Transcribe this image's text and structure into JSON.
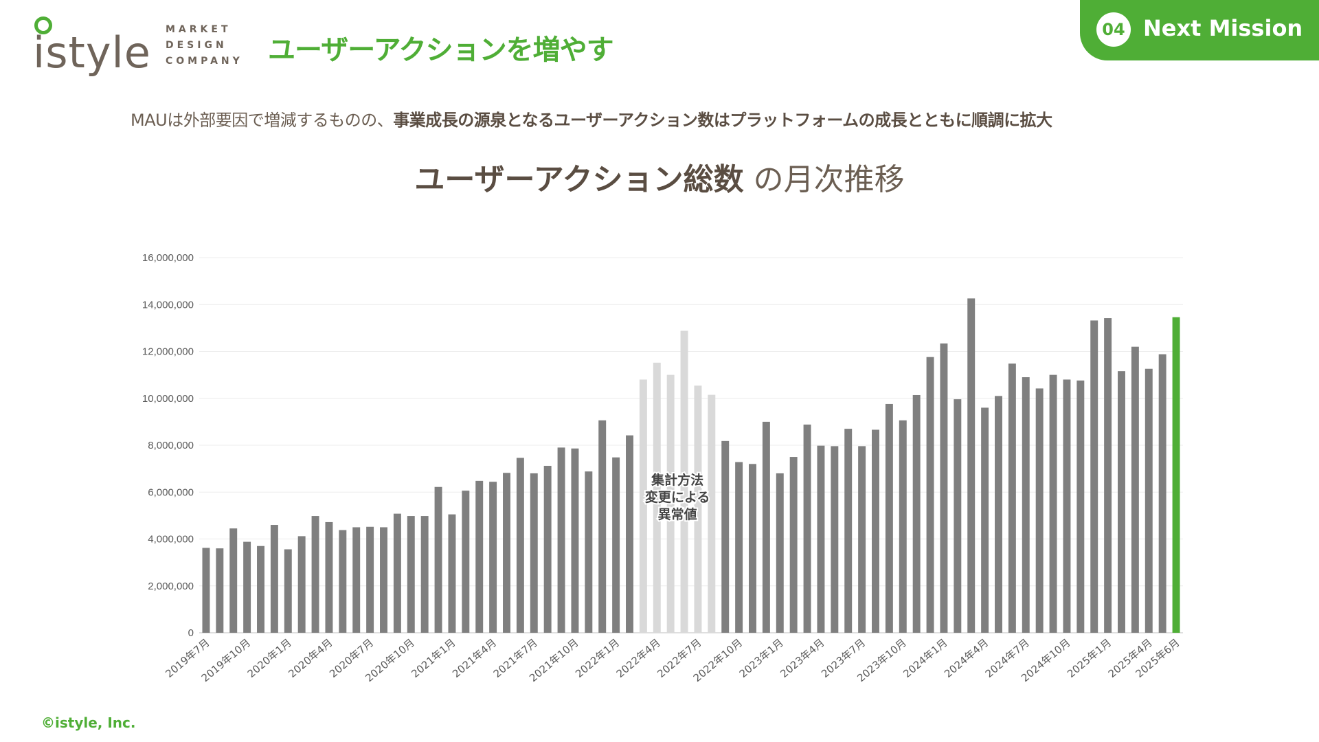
{
  "header": {
    "logo_text": "istyle",
    "logo_sub": [
      "MARKET",
      "DESIGN",
      "COMPANY"
    ],
    "title": "ユーザーアクションを増やす",
    "mission_number": "04",
    "mission_label": "Next Mission"
  },
  "lead": {
    "normal": "MAUは外部要因で増減するものの、",
    "bold": "事業成長の源泉となるユーザーアクション数はプラットフォームの成長とともに順調に拡大"
  },
  "chart_heading": {
    "bold": "ユーザーアクション総数",
    "normal": " の月次推移"
  },
  "footer": {
    "copyright": "©istyle, Inc."
  },
  "colors": {
    "accent": "#4fae36",
    "bar": "#7f7f7f",
    "anomaly": "#d9d9d9",
    "latest": "#4fae36"
  },
  "chart_data": {
    "type": "bar",
    "ylim": [
      0,
      16000000
    ],
    "yticks": [
      0,
      2000000,
      4000000,
      6000000,
      8000000,
      10000000,
      12000000,
      14000000,
      16000000
    ],
    "ytick_labels": [
      "0",
      "2,000,000",
      "4,000,000",
      "6,000,000",
      "8,000,000",
      "10,000,000",
      "12,000,000",
      "14,000,000",
      "16,000,000"
    ],
    "grid": true,
    "categories": [
      "2019年7月",
      "2019年8月",
      "2019年9月",
      "2019年10月",
      "2019年11月",
      "2019年12月",
      "2020年1月",
      "2020年2月",
      "2020年3月",
      "2020年4月",
      "2020年5月",
      "2020年6月",
      "2020年7月",
      "2020年8月",
      "2020年9月",
      "2020年10月",
      "2020年11月",
      "2020年12月",
      "2021年1月",
      "2021年2月",
      "2021年3月",
      "2021年4月",
      "2021年5月",
      "2021年6月",
      "2021年7月",
      "2021年8月",
      "2021年9月",
      "2021年10月",
      "2021年11月",
      "2021年12月",
      "2022年1月",
      "2022年2月",
      "2022年3月",
      "2022年4月",
      "2022年5月",
      "2022年6月",
      "2022年7月",
      "2022年8月",
      "2022年9月",
      "2022年10月",
      "2022年11月",
      "2022年12月",
      "2023年1月",
      "2023年2月",
      "2023年3月",
      "2023年4月",
      "2023年5月",
      "2023年6月",
      "2023年7月",
      "2023年8月",
      "2023年9月",
      "2023年10月",
      "2023年11月",
      "2023年12月",
      "2024年1月",
      "2024年2月",
      "2024年3月",
      "2024年4月",
      "2024年5月",
      "2024年6月",
      "2024年7月",
      "2024年8月",
      "2024年9月",
      "2024年10月",
      "2024年11月",
      "2024年12月",
      "2025年1月",
      "2025年2月",
      "2025年3月",
      "2025年4月",
      "2025年5月",
      "2025年6月"
    ],
    "shown_tick_labels": [
      "2019年7月",
      "2019年10月",
      "2020年1月",
      "2020年4月",
      "2020年7月",
      "2020年10月",
      "2021年1月",
      "2021年4月",
      "2021年7月",
      "2021年10月",
      "2022年1月",
      "2022年4月",
      "2022年7月",
      "2022年10月",
      "2023年1月",
      "2023年4月",
      "2023年7月",
      "2023年10月",
      "2024年1月",
      "2024年4月",
      "2024年7月",
      "2024年10月",
      "2025年1月",
      "2025年4月",
      "2025年6月"
    ],
    "values": [
      3620000,
      3600000,
      4450000,
      3880000,
      3700000,
      4600000,
      3560000,
      4120000,
      4980000,
      4720000,
      4380000,
      4500000,
      4520000,
      4500000,
      5080000,
      4980000,
      4980000,
      6220000,
      5050000,
      6060000,
      6480000,
      6440000,
      6820000,
      7460000,
      6800000,
      7120000,
      7900000,
      7860000,
      6880000,
      9060000,
      7480000,
      8420000,
      10800000,
      11520000,
      11000000,
      12880000,
      10540000,
      10150000,
      8180000,
      7280000,
      7200000,
      9000000,
      6800000,
      7500000,
      8880000,
      7980000,
      7960000,
      8700000,
      7960000,
      8660000,
      9760000,
      9060000,
      10140000,
      11760000,
      12340000,
      9960000,
      14260000,
      9600000,
      10100000,
      11480000,
      10900000,
      10420000,
      11000000,
      10800000,
      10760000,
      13320000,
      13420000,
      11160000,
      12200000,
      11260000,
      11880000,
      13460000
    ],
    "anomaly_range": [
      32,
      37
    ],
    "annotation": "集計方法\n変更による\n異常値"
  }
}
